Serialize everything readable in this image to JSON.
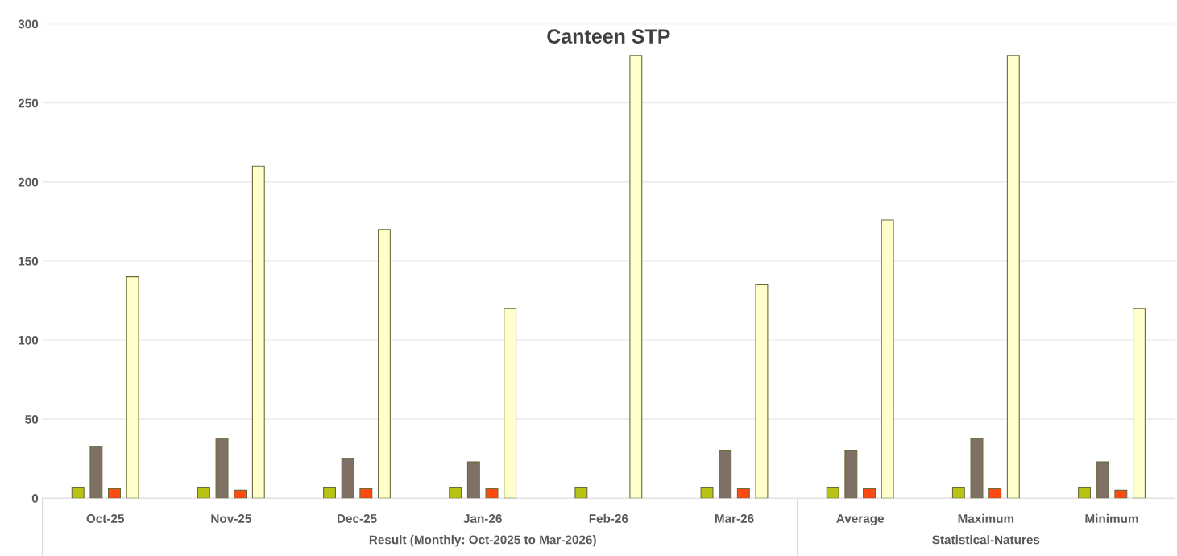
{
  "chart_data": {
    "type": "bar",
    "title": "Canteen STP",
    "categories": [
      "Oct-25",
      "Nov-25",
      "Dec-25",
      "Jan-26",
      "Feb-26",
      "Mar-26",
      "Average",
      "Maximum",
      "Minimum"
    ],
    "series": [
      {
        "color": "#b8c415",
        "values": [
          7,
          7,
          7,
          7,
          7,
          7,
          7,
          7,
          7
        ]
      },
      {
        "color": "#7f7065",
        "values": [
          33,
          38,
          25,
          23,
          null,
          30,
          30,
          38,
          23
        ]
      },
      {
        "color": "#ff4a12",
        "values": [
          6,
          5,
          6,
          6,
          null,
          6,
          6,
          6,
          5
        ]
      },
      {
        "color": "#ffffcc",
        "values": [
          140,
          210,
          170,
          120,
          280,
          135,
          176,
          280,
          120
        ]
      }
    ],
    "ylim": [
      0,
      300
    ],
    "yticks": [
      0,
      50,
      100,
      150,
      200,
      250,
      300
    ],
    "grid": "y",
    "legend": false,
    "annotations": [
      "Result (Monthly: Oct-2025 to Mar-2026)",
      "Statistical-Natures"
    ]
  }
}
